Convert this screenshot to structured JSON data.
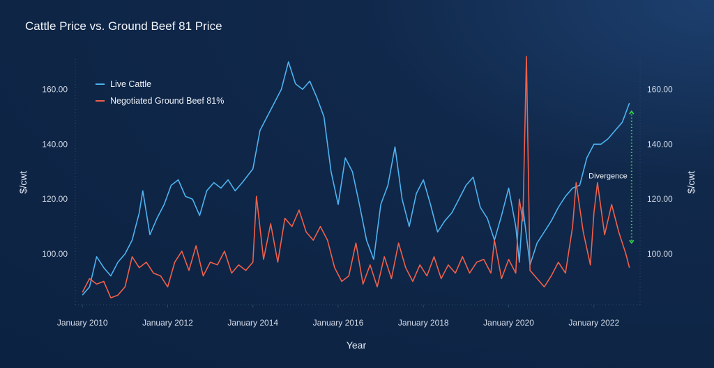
{
  "chart_data": {
    "type": "line",
    "title": "Cattle Price vs. Ground Beef 81 Price",
    "xlabel": "Year",
    "ylabel": "$/cwt",
    "ylabel_right": "$/cwt",
    "ylim": [
      81.5,
      171
    ],
    "yticks": [
      "100.00",
      "120.00",
      "140.00",
      "160.00"
    ],
    "ytick_values": [
      100,
      120,
      140,
      160
    ],
    "xticks": [
      "January 2010",
      "January 2012",
      "January 2014",
      "January 2016",
      "January 2018",
      "January 2020",
      "January 2022"
    ],
    "xtick_values": [
      "2010-01",
      "2012-01",
      "2014-01",
      "2016-01",
      "2018-01",
      "2020-01",
      "2022-01"
    ],
    "xlim": [
      "2009-11",
      "2023-02"
    ],
    "grid": false,
    "legend_position": "top-left",
    "series": [
      {
        "name": "Live Cattle",
        "color": "#4db3f0",
        "x": [
          "2010-01",
          "2010-03",
          "2010-05",
          "2010-07",
          "2010-09",
          "2010-11",
          "2011-01",
          "2011-03",
          "2011-05",
          "2011-06",
          "2011-08",
          "2011-10",
          "2011-12",
          "2012-02",
          "2012-04",
          "2012-06",
          "2012-08",
          "2012-10",
          "2012-12",
          "2013-02",
          "2013-04",
          "2013-06",
          "2013-08",
          "2013-10",
          "2014-01",
          "2014-03",
          "2014-05",
          "2014-07",
          "2014-09",
          "2014-11",
          "2015-01",
          "2015-03",
          "2015-05",
          "2015-07",
          "2015-09",
          "2015-11",
          "2016-01",
          "2016-03",
          "2016-05",
          "2016-07",
          "2016-09",
          "2016-11",
          "2017-01",
          "2017-03",
          "2017-05",
          "2017-07",
          "2017-09",
          "2017-11",
          "2018-01",
          "2018-03",
          "2018-05",
          "2018-07",
          "2018-09",
          "2018-11",
          "2019-01",
          "2019-03",
          "2019-05",
          "2019-07",
          "2019-09",
          "2019-11",
          "2020-01",
          "2020-03",
          "2020-04",
          "2020-05",
          "2020-07",
          "2020-09",
          "2020-11",
          "2021-01",
          "2021-03",
          "2021-05",
          "2021-07",
          "2021-09",
          "2021-11",
          "2022-01",
          "2022-03",
          "2022-05",
          "2022-07",
          "2022-09",
          "2022-11"
        ],
        "values": [
          85,
          88,
          99,
          95,
          92,
          97,
          100,
          105,
          115,
          123,
          107,
          113,
          118,
          125,
          127,
          121,
          120,
          114,
          123,
          126,
          124,
          127,
          123,
          126,
          131,
          145,
          150,
          155,
          160,
          170,
          162,
          160,
          163,
          157,
          150,
          130,
          118,
          135,
          130,
          118,
          105,
          98,
          118,
          125,
          139,
          120,
          110,
          122,
          127,
          118,
          108,
          112,
          115,
          120,
          125,
          128,
          117,
          113,
          105,
          114,
          124,
          110,
          97,
          117,
          96,
          104,
          108,
          112,
          117,
          121,
          124,
          125,
          135,
          140,
          140,
          142,
          145,
          148,
          155
        ]
      },
      {
        "name": "Negotiated Ground Beef 81%",
        "color": "#f0604a",
        "x": [
          "2010-01",
          "2010-03",
          "2010-05",
          "2010-07",
          "2010-09",
          "2010-11",
          "2011-01",
          "2011-03",
          "2011-05",
          "2011-07",
          "2011-09",
          "2011-11",
          "2012-01",
          "2012-03",
          "2012-05",
          "2012-07",
          "2012-09",
          "2012-11",
          "2013-01",
          "2013-03",
          "2013-05",
          "2013-07",
          "2013-09",
          "2013-11",
          "2014-01",
          "2014-02",
          "2014-04",
          "2014-06",
          "2014-08",
          "2014-10",
          "2014-12",
          "2015-02",
          "2015-04",
          "2015-06",
          "2015-08",
          "2015-10",
          "2015-12",
          "2016-02",
          "2016-04",
          "2016-06",
          "2016-08",
          "2016-10",
          "2016-12",
          "2017-02",
          "2017-04",
          "2017-06",
          "2017-08",
          "2017-10",
          "2017-12",
          "2018-02",
          "2018-04",
          "2018-06",
          "2018-08",
          "2018-10",
          "2018-12",
          "2019-02",
          "2019-04",
          "2019-06",
          "2019-08",
          "2019-09",
          "2019-11",
          "2020-01",
          "2020-03",
          "2020-04",
          "2020-05",
          "2020-06",
          "2020-07",
          "2020-09",
          "2020-11",
          "2021-01",
          "2021-03",
          "2021-05",
          "2021-07",
          "2021-08",
          "2021-10",
          "2021-12",
          "2022-01",
          "2022-02",
          "2022-04",
          "2022-06",
          "2022-08",
          "2022-10",
          "2022-11"
        ],
        "values": [
          86,
          91,
          89,
          90,
          84,
          85,
          88,
          99,
          95,
          97,
          93,
          92,
          88,
          97,
          101,
          94,
          103,
          92,
          97,
          96,
          101,
          93,
          96,
          94,
          97,
          121,
          98,
          111,
          97,
          113,
          110,
          116,
          108,
          105,
          110,
          105,
          95,
          90,
          92,
          104,
          89,
          96,
          88,
          99,
          91,
          104,
          95,
          90,
          96,
          92,
          99,
          91,
          96,
          93,
          99,
          93,
          97,
          98,
          93,
          105,
          91,
          98,
          93,
          120,
          112,
          172,
          94,
          91,
          88,
          92,
          97,
          93,
          110,
          126,
          108,
          96,
          115,
          126,
          107,
          118,
          108,
          100,
          95
        ]
      }
    ],
    "annotations": [
      {
        "text": "Divergence",
        "from": 152,
        "to": 104,
        "date": "2022-12",
        "color": "#35d04a"
      }
    ]
  }
}
